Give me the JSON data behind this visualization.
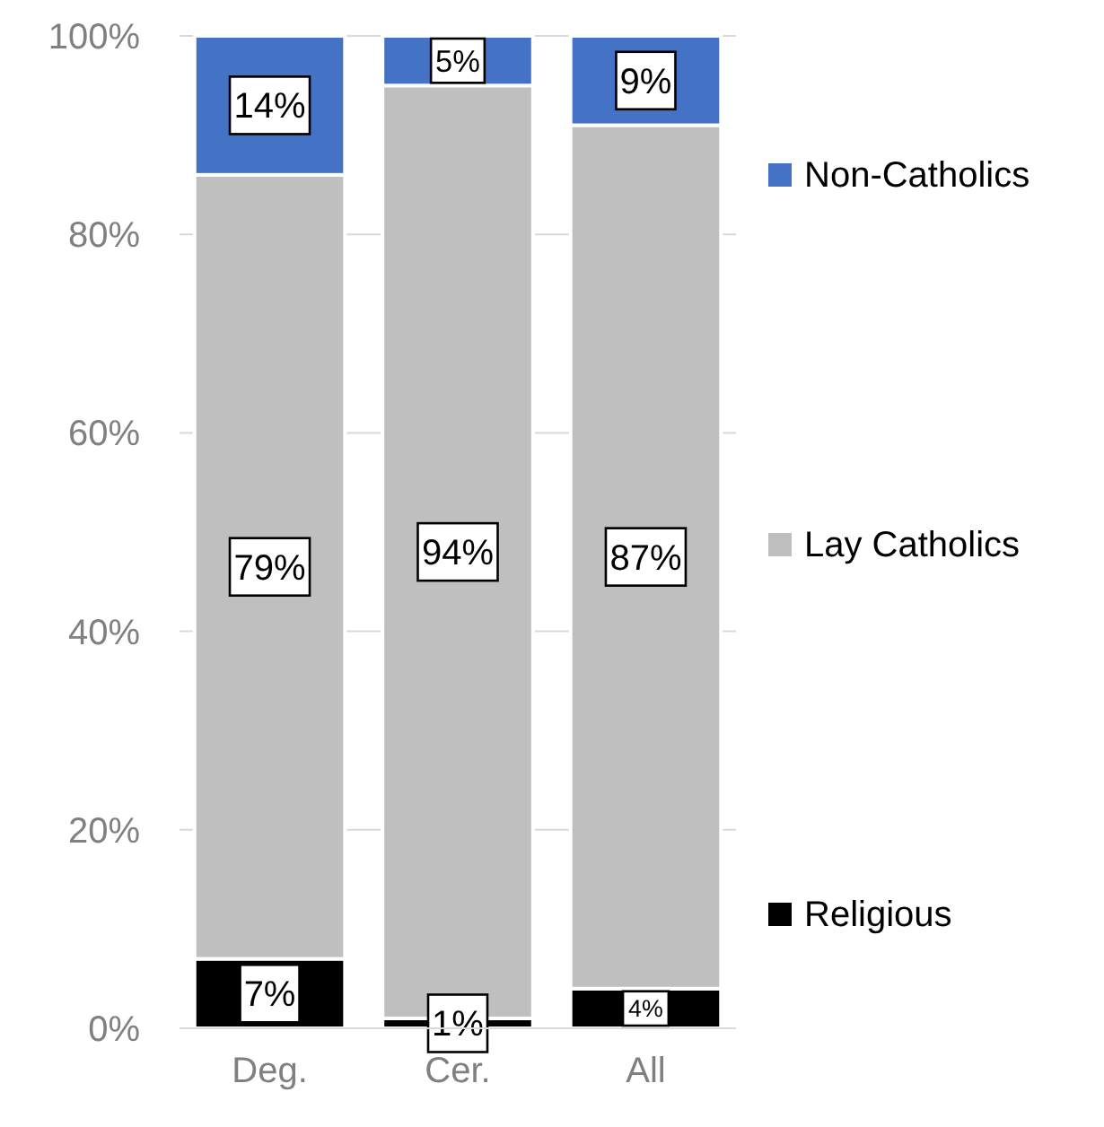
{
  "chart_data": {
    "type": "bar",
    "stacked": true,
    "categories": [
      "Deg.",
      "Cer.",
      "All"
    ],
    "series": [
      {
        "name": "Religious",
        "color": "#000000",
        "values": [
          7,
          1,
          4
        ],
        "value_labels": [
          "7%",
          "1%",
          "4%"
        ]
      },
      {
        "name": "Lay Catholics",
        "color": "#bfbfbf",
        "values": [
          79,
          94,
          87
        ],
        "value_labels": [
          "79%",
          "94%",
          "87%"
        ]
      },
      {
        "name": "Non-Catholics",
        "color": "#4472c4",
        "values": [
          14,
          5,
          9
        ],
        "value_labels": [
          "14%",
          "5%",
          "9%"
        ]
      }
    ],
    "ylim": [
      0,
      100
    ],
    "yticks": [
      {
        "value": 0,
        "label": "0%"
      },
      {
        "value": 20,
        "label": "20%"
      },
      {
        "value": 40,
        "label": "40%"
      },
      {
        "value": 60,
        "label": "60%"
      },
      {
        "value": 80,
        "label": "80%"
      },
      {
        "value": 100,
        "label": "100%"
      }
    ],
    "grid": "y",
    "legend": "right"
  }
}
